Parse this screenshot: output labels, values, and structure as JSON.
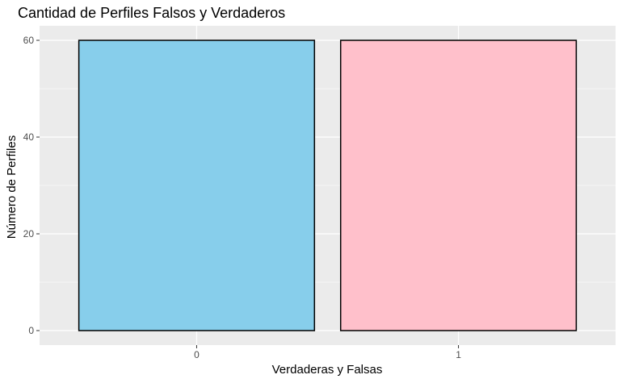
{
  "chart_data": {
    "type": "bar",
    "title": "Cantidad de Perfiles Falsos y Verdaderos",
    "xlabel": "Verdaderas y Falsas",
    "ylabel": "Número de Perfiles",
    "categories": [
      "0",
      "1"
    ],
    "values": [
      60,
      60
    ],
    "bar_colors": [
      "#87CEEB",
      "#FFC0CB"
    ],
    "bar_outline": "#000000",
    "panel_background": "#EBEBEB",
    "grid_color": "#FFFFFF",
    "grid": true,
    "legend": false,
    "ylim": [
      -3,
      63
    ],
    "yticks": [
      0,
      20,
      40,
      60
    ]
  }
}
